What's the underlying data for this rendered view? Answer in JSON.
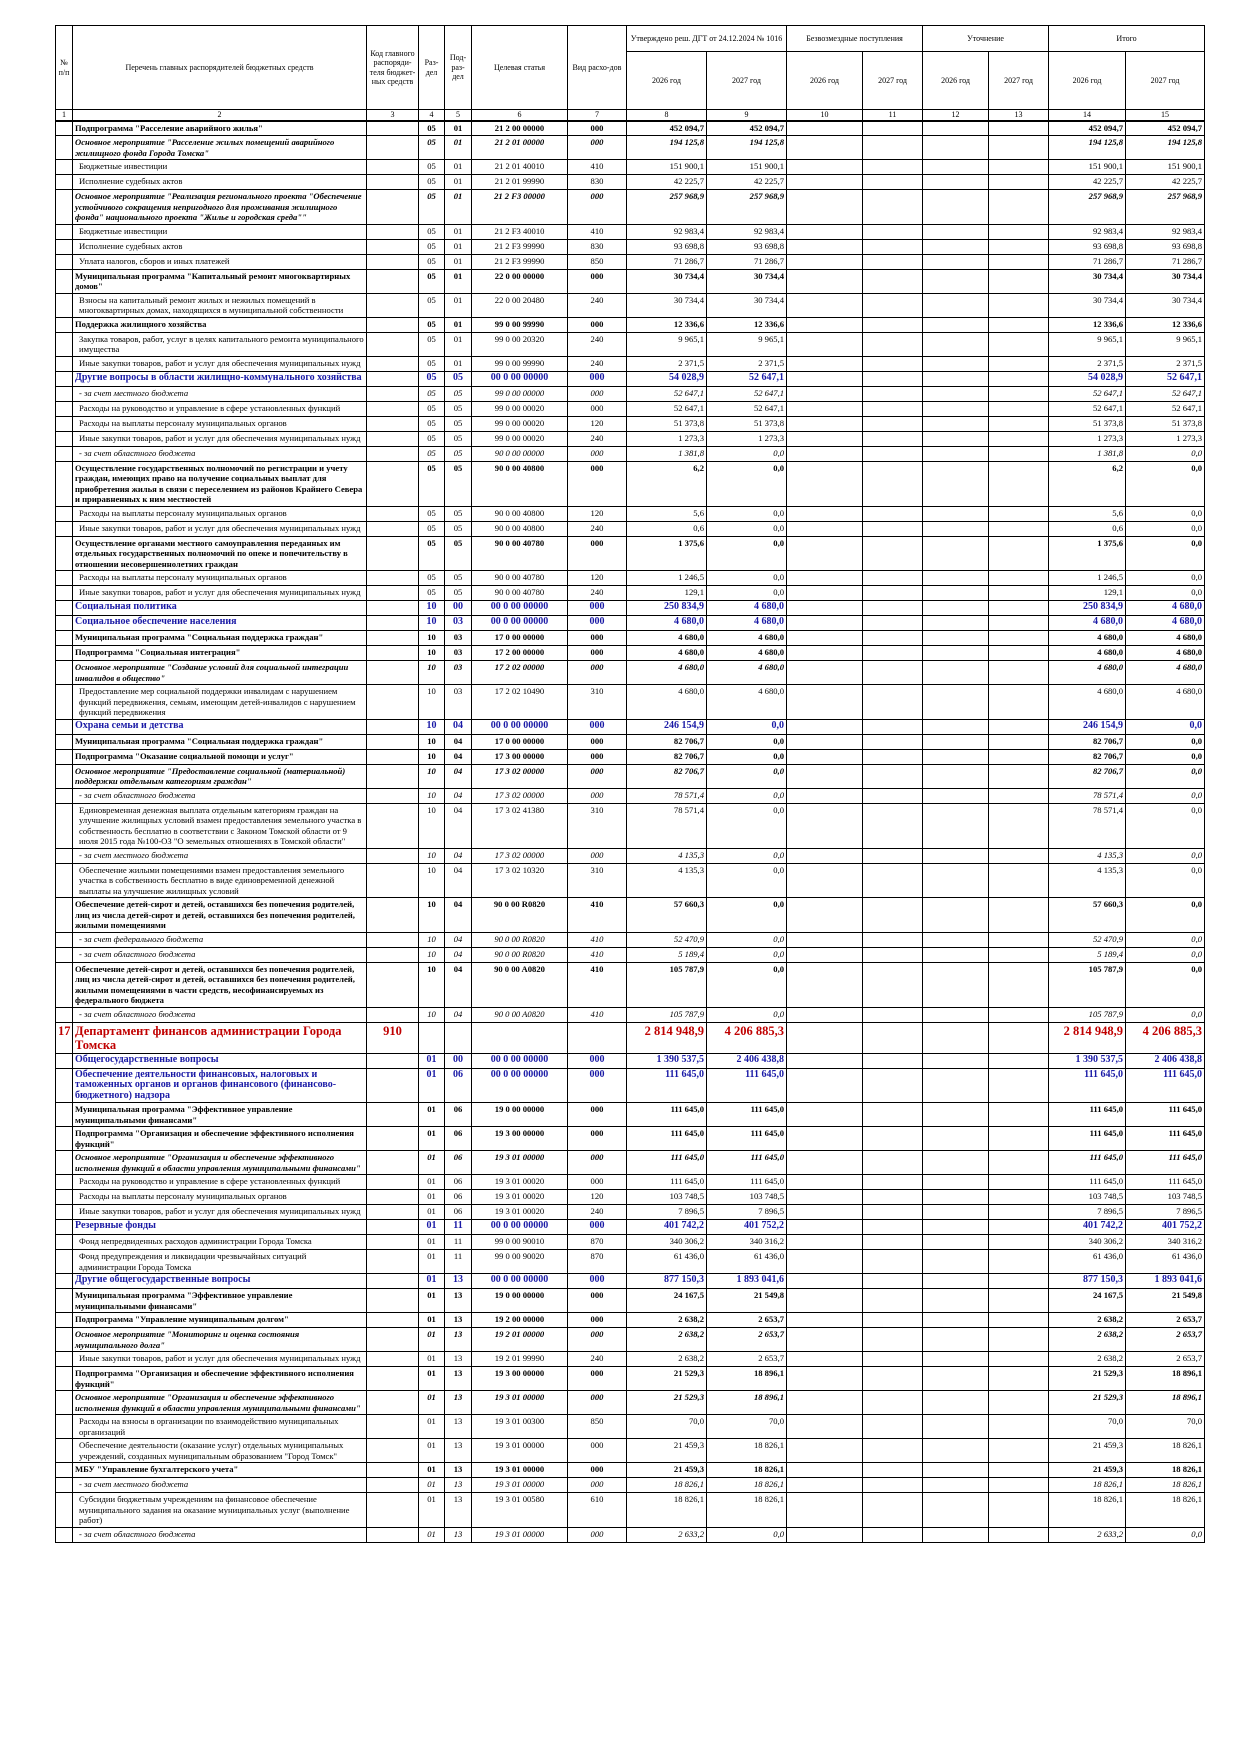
{
  "header": {
    "num": "№ п/п",
    "name": "Перечень главных распорядителей бюджетных средств",
    "code": "Код главного распоряди-теля бюджет-ных средств",
    "rz": "Раз-дел",
    "prz": "Под-раз-дел",
    "cs": "Целевая статья",
    "vr": "Вид расхо-дов",
    "approved": "Утверждено реш. ДГТ от 24.12.2024 № 1016",
    "gratis": "Безвозмездные поступления",
    "change": "Уточнение",
    "total": "Итого",
    "y2026": "2026 год",
    "y2027": "2027 год",
    "col_numbers": [
      1,
      2,
      3,
      4,
      5,
      6,
      7,
      8,
      9,
      10,
      11,
      12,
      13,
      14,
      15
    ]
  },
  "table": {
    "rows": [
      [
        null,
        "Подпрограмма \"Расселение аварийного жилья\"",
        null,
        "05",
        "01",
        "21 2 00 00000",
        "000",
        "452 094,7",
        "452 094,7",
        "452 094,7",
        "452 094,7"
      ],
      [
        null,
        "Основное мероприятие \"Расселение жилых помещений аварийного жилищного фонда Города Томска\"",
        null,
        "05",
        "01",
        "21 2 01 00000",
        "000",
        "194 125,8",
        "194 125,8",
        "194 125,8",
        "194 125,8"
      ],
      [
        null,
        "Бюджетные инвестиции",
        null,
        "05",
        "01",
        "21 2 01 40010",
        "410",
        "151 900,1",
        "151 900,1",
        "151 900,1",
        "151 900,1"
      ],
      [
        null,
        "Исполнение судебных актов",
        null,
        "05",
        "01",
        "21 2 01 99990",
        "830",
        "42 225,7",
        "42 225,7",
        "42 225,7",
        "42 225,7"
      ],
      [
        null,
        "Основное мероприятие \"Реализация регионального проекта \"Обеспечение устойчивого сокращения непригодного для проживания жилищного фонда\" национального проекта \"Жилье и городская среда\"\"",
        null,
        "05",
        "01",
        "21 2 F3 00000",
        "000",
        "257 968,9",
        "257 968,9",
        "257 968,9",
        "257 968,9"
      ],
      [
        null,
        "Бюджетные инвестиции",
        null,
        "05",
        "01",
        "21 2 F3 40010",
        "410",
        "92 983,4",
        "92 983,4",
        "92 983,4",
        "92 983,4"
      ],
      [
        null,
        "Исполнение судебных актов",
        null,
        "05",
        "01",
        "21 2 F3 99990",
        "830",
        "93 698,8",
        "93 698,8",
        "93 698,8",
        "93 698,8"
      ],
      [
        null,
        "Уплата налогов, сборов и иных платежей",
        null,
        "05",
        "01",
        "21 2 F3 99990",
        "850",
        "71 286,7",
        "71 286,7",
        "71 286,7",
        "71 286,7"
      ],
      [
        null,
        "Муниципальная программа \"Капитальный ремонт многоквартирных домов\"",
        null,
        "05",
        "01",
        "22 0 00 00000",
        "000",
        "30 734,4",
        "30 734,4",
        "30 734,4",
        "30 734,4"
      ],
      [
        null,
        "Взносы на капитальный ремонт жилых и нежилых помещений в многоквартирных домах, находящихся в муниципальной собственности",
        null,
        "05",
        "01",
        "22 0 00 20480",
        "240",
        "30 734,4",
        "30 734,4",
        "30 734,4",
        "30 734,4"
      ],
      [
        null,
        "Поддержка жилищного хозяйства",
        null,
        "05",
        "01",
        "99 0 00 99990",
        "000",
        "12 336,6",
        "12 336,6",
        "12 336,6",
        "12 336,6"
      ],
      [
        null,
        "Закупка товаров, работ, услуг в целях капитального ремонта муниципального имущества",
        null,
        "05",
        "01",
        "99 0 00 20320",
        "240",
        "9 965,1",
        "9 965,1",
        "9 965,1",
        "9 965,1"
      ],
      [
        null,
        "Иные закупки товаров, работ и услуг для обеспечения муниципальных нужд",
        null,
        "05",
        "01",
        "99 0 00 99990",
        "240",
        "2 371,5",
        "2 371,5",
        "2 371,5",
        "2 371,5"
      ],
      [
        null,
        "Другие вопросы в области жилищно-коммунального хозяйства",
        null,
        "05",
        "05",
        "00 0 00 00000",
        "000",
        "54 028,9",
        "52 647,1",
        "54 028,9",
        "52 647,1"
      ],
      [
        null,
        "- за счет местного бюджета",
        null,
        "05",
        "05",
        "99 0 00 00000",
        "000",
        "52 647,1",
        "52 647,1",
        "52 647,1",
        "52 647,1"
      ],
      [
        null,
        "Расходы на руководство и управление в сфере установленных функций",
        null,
        "05",
        "05",
        "99 0 00 00020",
        "000",
        "52 647,1",
        "52 647,1",
        "52 647,1",
        "52 647,1"
      ],
      [
        null,
        "Расходы на выплаты персоналу муниципальных органов",
        null,
        "05",
        "05",
        "99 0 00 00020",
        "120",
        "51 373,8",
        "51 373,8",
        "51 373,8",
        "51 373,8"
      ],
      [
        null,
        "Иные закупки товаров, работ и услуг для обеспечения муниципальных нужд",
        null,
        "05",
        "05",
        "99 0 00 00020",
        "240",
        "1 273,3",
        "1 273,3",
        "1 273,3",
        "1 273,3"
      ],
      [
        null,
        "- за счет областного бюджета",
        null,
        "05",
        "05",
        "90 0 00 00000",
        "000",
        "1 381,8",
        "0,0",
        "1 381,8",
        "0,0"
      ],
      [
        null,
        "Осуществление государственных полномочий по регистрации и учету граждан, имеющих право на получение социальных выплат для приобретения жилья в связи с переселением из районов Крайнего Севера и приравненных к ним местностей",
        null,
        "05",
        "05",
        "90 0 00 40800",
        "000",
        "6,2",
        "0,0",
        "6,2",
        "0,0"
      ],
      [
        null,
        "Расходы на выплаты персоналу муниципальных органов",
        null,
        "05",
        "05",
        "90 0 00 40800",
        "120",
        "5,6",
        "0,0",
        "5,6",
        "0,0"
      ],
      [
        null,
        "Иные закупки товаров, работ и услуг для обеспечения муниципальных нужд",
        null,
        "05",
        "05",
        "90 0 00 40800",
        "240",
        "0,6",
        "0,0",
        "0,6",
        "0,0"
      ],
      [
        null,
        "Осуществление органами местного самоуправления переданных им отдельных государственных полномочий по опеке и попечительству в отношении несовершеннолетних граждан",
        null,
        "05",
        "05",
        "90 0 00 40780",
        "000",
        "1 375,6",
        "0,0",
        "1 375,6",
        "0,0"
      ],
      [
        null,
        "Расходы на выплаты персоналу муниципальных органов",
        null,
        "05",
        "05",
        "90 0 00 40780",
        "120",
        "1 246,5",
        "0,0",
        "1 246,5",
        "0,0"
      ],
      [
        null,
        "Иные закупки товаров, работ и услуг для обеспечения муниципальных нужд",
        null,
        "05",
        "05",
        "90 0 00 40780",
        "240",
        "129,1",
        "0,0",
        "129,1",
        "0,0"
      ],
      [
        null,
        "Социальная политика",
        null,
        "10",
        "00",
        "00 0 00 00000",
        "000",
        "250 834,9",
        "4 680,0",
        "250 834,9",
        "4 680,0"
      ],
      [
        null,
        "Социальное обеспечение населения",
        null,
        "10",
        "03",
        "00 0 00 00000",
        "000",
        "4 680,0",
        "4 680,0",
        "4 680,0",
        "4 680,0"
      ],
      [
        null,
        "Муниципальная программа \"Социальная поддержка граждан\"",
        null,
        "10",
        "03",
        "17 0 00 00000",
        "000",
        "4 680,0",
        "4 680,0",
        "4 680,0",
        "4 680,0"
      ],
      [
        null,
        "Подпрограмма \"Социальная интеграция\"",
        null,
        "10",
        "03",
        "17 2 00 00000",
        "000",
        "4 680,0",
        "4 680,0",
        "4 680,0",
        "4 680,0"
      ],
      [
        null,
        "Основное мероприятие \"Создание условий для социальной интеграции инвалидов в общество\"",
        null,
        "10",
        "03",
        "17 2 02 00000",
        "000",
        "4 680,0",
        "4 680,0",
        "4 680,0",
        "4 680,0"
      ],
      [
        null,
        "Предоставление мер социальной поддержки инвалидам с нарушением функций передвижения, семьям, имеющим детей-инвалидов с нарушением функций передвижения",
        null,
        "10",
        "03",
        "17 2 02 10490",
        "310",
        "4 680,0",
        "4 680,0",
        "4 680,0",
        "4 680,0"
      ],
      [
        null,
        "Охрана семьи и детства",
        null,
        "10",
        "04",
        "00 0 00 00000",
        "000",
        "246 154,9",
        "0,0",
        "246 154,9",
        "0,0"
      ],
      [
        null,
        "Муниципальная программа \"Социальная поддержка граждан\"",
        null,
        "10",
        "04",
        "17 0 00 00000",
        "000",
        "82 706,7",
        "0,0",
        "82 706,7",
        "0,0"
      ],
      [
        null,
        "Подпрограмма \"Оказание социальной помощи и услуг\"",
        null,
        "10",
        "04",
        "17 3 00 00000",
        "000",
        "82 706,7",
        "0,0",
        "82 706,7",
        "0,0"
      ],
      [
        null,
        "Основное мероприятие \"Предоставление социальной (материальной) поддержки отдельным категориям граждан\"",
        null,
        "10",
        "04",
        "17 3 02 00000",
        "000",
        "82 706,7",
        "0,0",
        "82 706,7",
        "0,0"
      ],
      [
        null,
        "- за счет областного бюджета",
        null,
        "10",
        "04",
        "17 3 02 00000",
        "000",
        "78 571,4",
        "0,0",
        "78 571,4",
        "0,0"
      ],
      [
        null,
        "Единовременная денежная выплата отдельным категориям граждан на улучшение жилищных условий взамен предоставления земельного участка в собственность бесплатно в соответствии с Законом Томской области от 9 июля 2015 года №100-ОЗ \"О земельных отношениях в Томской области\"",
        null,
        "10",
        "04",
        "17 3 02 41380",
        "310",
        "78 571,4",
        "0,0",
        "78 571,4",
        "0,0"
      ],
      [
        null,
        "- за счет местного бюджета",
        null,
        "10",
        "04",
        "17 3 02 00000",
        "000",
        "4 135,3",
        "0,0",
        "4 135,3",
        "0,0"
      ],
      [
        null,
        "Обеспечение жилыми помещениями взамен предоставления земельного участка в собственность бесплатно в виде единовременной денежной выплаты на улучшение жилищных условий",
        null,
        "10",
        "04",
        "17 3 02 10320",
        "310",
        "4 135,3",
        "0,0",
        "4 135,3",
        "0,0"
      ],
      [
        null,
        "Обеспечение детей-сирот и детей, оставшихся без попечения родителей, лиц из числа детей-сирот и детей, оставшихся без попечения родителей, жилыми помещениями",
        null,
        "10",
        "04",
        "90 0 00 R0820",
        "410",
        "57 660,3",
        "0,0",
        "57 660,3",
        "0,0"
      ],
      [
        null,
        "- за счет федерального бюджета",
        null,
        "10",
        "04",
        "90 0 00 R0820",
        "410",
        "52 470,9",
        "0,0",
        "52 470,9",
        "0,0"
      ],
      [
        null,
        "- за счет областного бюджета",
        null,
        "10",
        "04",
        "90 0 00 R0820",
        "410",
        "5 189,4",
        "0,0",
        "5 189,4",
        "0,0"
      ],
      [
        null,
        "Обеспечение детей-сирот и детей, оставшихся без попечения родителей, лиц из числа детей-сирот и детей, оставшихся без попечения родителей, жилыми помещениями в части средств, несофинансируемых из федерального бюджета",
        null,
        "10",
        "04",
        "90 0 00 A0820",
        "410",
        "105 787,9",
        "0,0",
        "105 787,9",
        "0,0"
      ],
      [
        null,
        "- за счет областного бюджета",
        null,
        "10",
        "04",
        "90 0 00 A0820",
        "410",
        "105 787,9",
        "0,0",
        "105 787,9",
        "0,0"
      ],
      [
        "17",
        "Департамент финансов администрации Города Томска",
        "910",
        null,
        null,
        null,
        null,
        "2 814 948,9",
        "4 206 885,3",
        "2 814 948,9",
        "4 206 885,3"
      ],
      [
        null,
        "Общегосударственные вопросы",
        null,
        "01",
        "00",
        "00 0 00 00000",
        "000",
        "1 390 537,5",
        "2 406 438,8",
        "1 390 537,5",
        "2 406 438,8"
      ],
      [
        null,
        "Обеспечение деятельности финансовых, налоговых и таможенных органов и органов финансового (финансово-бюджетного) надзора",
        null,
        "01",
        "06",
        "00 0 00 00000",
        "000",
        "111 645,0",
        "111 645,0",
        "111 645,0",
        "111 645,0"
      ],
      [
        null,
        "Муниципальная программа \"Эффективное управление муниципальными финансами\"",
        null,
        "01",
        "06",
        "19 0 00 00000",
        "000",
        "111 645,0",
        "111 645,0",
        "111 645,0",
        "111 645,0"
      ],
      [
        null,
        "Подпрограмма \"Организация и обеспечение эффективного исполнения функций\"",
        null,
        "01",
        "06",
        "19 3 00 00000",
        "000",
        "111 645,0",
        "111 645,0",
        "111 645,0",
        "111 645,0"
      ],
      [
        null,
        "Основное мероприятие \"Организация и обеспечение эффективного исполнения функций в области управления муниципальными финансами\"",
        null,
        "01",
        "06",
        "19 3 01 00000",
        "000",
        "111 645,0",
        "111 645,0",
        "111 645,0",
        "111 645,0"
      ],
      [
        null,
        "Расходы на руководство и управление в сфере установленных функций",
        null,
        "01",
        "06",
        "19 3 01 00020",
        "000",
        "111 645,0",
        "111 645,0",
        "111 645,0",
        "111 645,0"
      ],
      [
        null,
        "Расходы на выплаты персоналу муниципальных органов",
        null,
        "01",
        "06",
        "19 3 01 00020",
        "120",
        "103 748,5",
        "103 748,5",
        "103 748,5",
        "103 748,5"
      ],
      [
        null,
        "Иные закупки товаров, работ и услуг для обеспечения муниципальных нужд",
        null,
        "01",
        "06",
        "19 3 01 00020",
        "240",
        "7 896,5",
        "7 896,5",
        "7 896,5",
        "7 896,5"
      ],
      [
        null,
        "Резервные фонды",
        null,
        "01",
        "11",
        "00 0 00 00000",
        "000",
        "401 742,2",
        "401 752,2",
        "401 742,2",
        "401 752,2"
      ],
      [
        null,
        "Фонд непредвиденных расходов администрации Города Томска",
        null,
        "01",
        "11",
        "99 0 00 90010",
        "870",
        "340 306,2",
        "340 316,2",
        "340 306,2",
        "340 316,2"
      ],
      [
        null,
        "Фонд предупреждения и ликвидации чрезвычайных ситуаций администрации Города Томска",
        null,
        "01",
        "11",
        "99 0 00 90020",
        "870",
        "61 436,0",
        "61 436,0",
        "61 436,0",
        "61 436,0"
      ],
      [
        null,
        "Другие общегосударственные вопросы",
        null,
        "01",
        "13",
        "00 0 00 00000",
        "000",
        "877 150,3",
        "1 893 041,6",
        "877 150,3",
        "1 893 041,6"
      ],
      [
        null,
        "Муниципальная программа \"Эффективное управление муниципальными финансами\"",
        null,
        "01",
        "13",
        "19 0 00 00000",
        "000",
        "24 167,5",
        "21 549,8",
        "24 167,5",
        "21 549,8"
      ],
      [
        null,
        "Подпрограмма \"Управление муниципальным долгом\"",
        null,
        "01",
        "13",
        "19 2 00 00000",
        "000",
        "2 638,2",
        "2 653,7",
        "2 638,2",
        "2 653,7"
      ],
      [
        null,
        "Основное мероприятие \"Мониторинг и оценка состояния муниципального долга\"",
        null,
        "01",
        "13",
        "19 2 01 00000",
        "000",
        "2 638,2",
        "2 653,7",
        "2 638,2",
        "2 653,7"
      ],
      [
        null,
        "Иные закупки товаров, работ и услуг для обеспечения муниципальных нужд",
        null,
        "01",
        "13",
        "19 2 01 99990",
        "240",
        "2 638,2",
        "2 653,7",
        "2 638,2",
        "2 653,7"
      ],
      [
        null,
        "Подпрограмма \"Организация и обеспечение эффективного исполнения функций\"",
        null,
        "01",
        "13",
        "19 3 00 00000",
        "000",
        "21 529,3",
        "18 896,1",
        "21 529,3",
        "18 896,1"
      ],
      [
        null,
        "Основное мероприятие \"Организация и обеспечение эффективного исполнения функций в области управления муниципальными финансами\"",
        null,
        "01",
        "13",
        "19 3 01 00000",
        "000",
        "21 529,3",
        "18 896,1",
        "21 529,3",
        "18 896,1"
      ],
      [
        null,
        "Расходы на взносы в организации по взаимодействию муниципальных организаций",
        null,
        "01",
        "13",
        "19 3 01 00300",
        "850",
        "70,0",
        "70,0",
        "70,0",
        "70,0"
      ],
      [
        null,
        "Обеспечение деятельности (оказание услуг) отдельных муниципальных учреждений, созданных муниципальным образованием \"Город Томск\"",
        null,
        "01",
        "13",
        "19 3 01 00000",
        "000",
        "21 459,3",
        "18 826,1",
        "21 459,3",
        "18 826,1"
      ],
      [
        null,
        "МБУ \"Управление бухгалтерского учета\"",
        null,
        "01",
        "13",
        "19 3 01 00000",
        "000",
        "21 459,3",
        "18 826,1",
        "21 459,3",
        "18 826,1"
      ],
      [
        null,
        "- за счет местного бюджета",
        null,
        "01",
        "13",
        "19 3 01 00000",
        "000",
        "18 826,1",
        "18 826,1",
        "18 826,1",
        "18 826,1"
      ],
      [
        null,
        "Субсидии бюджетным учреждениям на финансовое обеспечение муниципального задания на оказание муниципальных услуг (выполнение работ)",
        null,
        "01",
        "13",
        "19 3 01 00580",
        "610",
        "18 826,1",
        "18 826,1",
        "18 826,1",
        "18 826,1"
      ],
      [
        null,
        "- за счет областного бюджета",
        null,
        "01",
        "13",
        "19 3 01 00000",
        "000",
        "2 633,2",
        "0,0",
        "2 633,2",
        "0,0"
      ]
    ]
  }
}
